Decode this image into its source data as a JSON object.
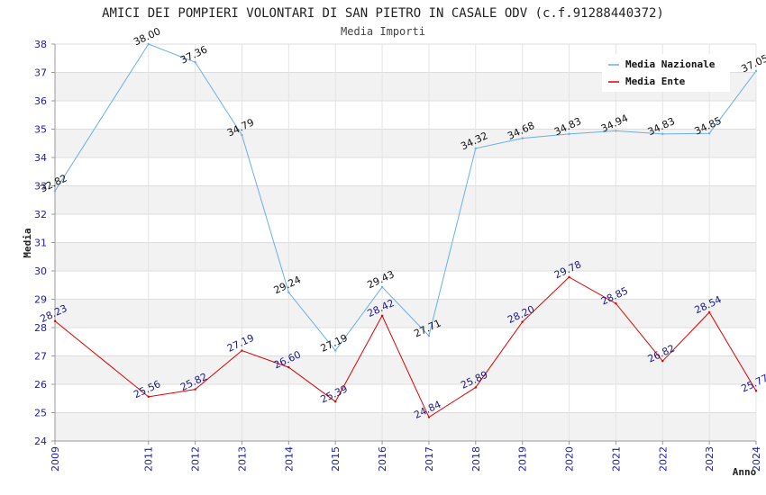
{
  "chart_data": {
    "type": "line",
    "title": "AMICI DEI POMPIERI VOLONTARI DI SAN PIETRO IN CASALE ODV (c.f.91288440372)",
    "subtitle": "Media Importi",
    "xlabel": "Anno",
    "ylabel": "Media",
    "x": [
      "2009",
      "2011",
      "2012",
      "2013",
      "2014",
      "2015",
      "2016",
      "2017",
      "2018",
      "2019",
      "2020",
      "2021",
      "2022",
      "2023",
      "2024"
    ],
    "ylim": [
      24,
      38
    ],
    "yticks": [
      "24",
      "25",
      "26",
      "27",
      "28",
      "29",
      "30",
      "31",
      "32",
      "33",
      "34",
      "35",
      "36",
      "37",
      "38"
    ],
    "grid": true,
    "legend_position": "top-right",
    "series": [
      {
        "name": "Media Nazionale",
        "color": "#6aaee8",
        "values": [
          32.82,
          38.0,
          37.36,
          34.79,
          29.24,
          27.19,
          29.43,
          27.71,
          34.32,
          34.68,
          34.83,
          34.94,
          34.83,
          34.85,
          37.05
        ],
        "labels": [
          "32.82",
          "38.00",
          "37.36",
          "34.79",
          "29.24",
          "27.19",
          "29.43",
          "27.71",
          "34.32",
          "34.68",
          "34.83",
          "34.94",
          "34.83",
          "34.85",
          "37.05"
        ]
      },
      {
        "name": "Media Ente",
        "color": "#dd0000",
        "label_color": "#1a1a88",
        "values": [
          28.23,
          25.56,
          25.82,
          27.19,
          26.6,
          25.39,
          28.42,
          24.84,
          25.89,
          28.2,
          29.78,
          28.85,
          26.82,
          28.54,
          25.77
        ],
        "labels": [
          "28.23",
          "25.56",
          "25.82",
          "27.19",
          "26.60",
          "25.39",
          "28.42",
          "24.84",
          "25.89",
          "28.20",
          "29.78",
          "28.85",
          "26.82",
          "28.54",
          "25.77"
        ]
      }
    ]
  }
}
